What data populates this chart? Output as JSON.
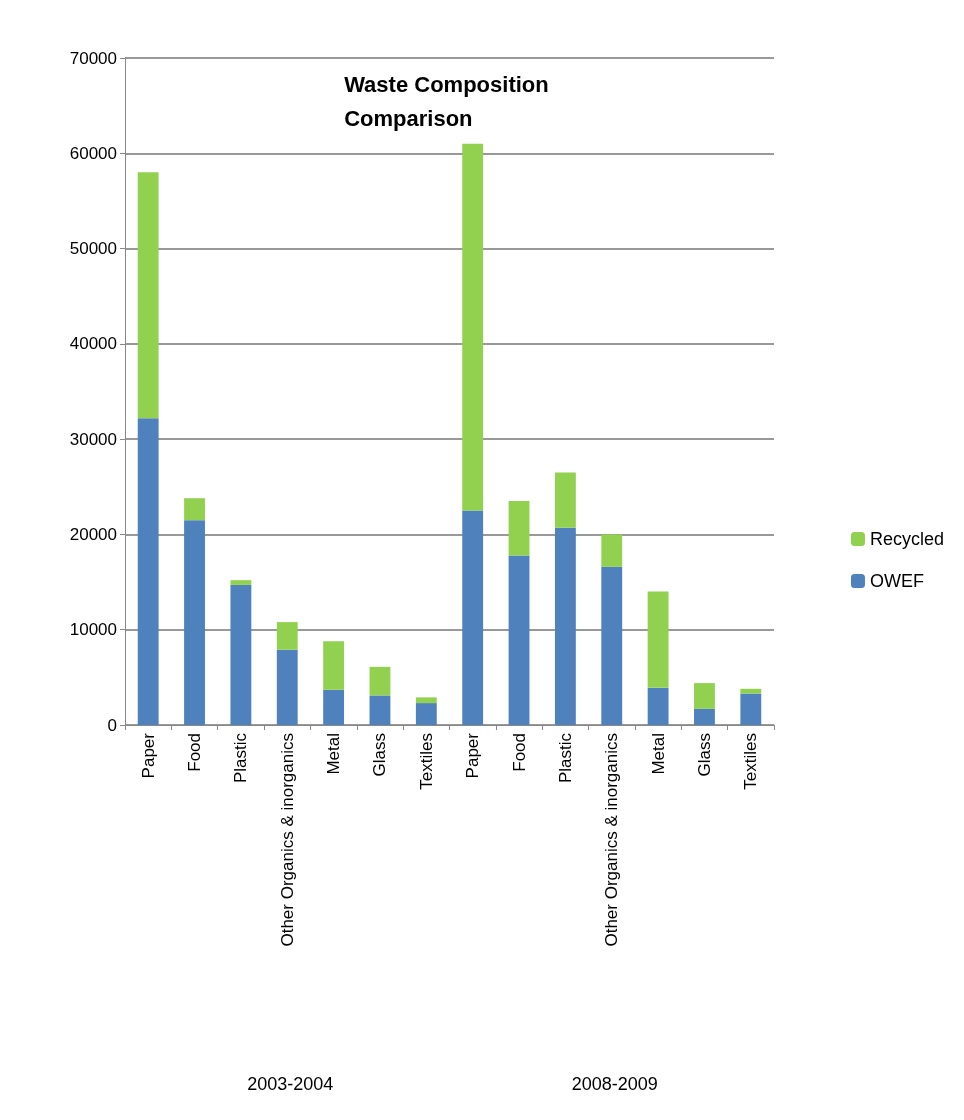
{
  "chart_data": {
    "type": "bar",
    "title": "Waste Composition\nComparison",
    "categories": [
      "Paper",
      "Food",
      "Plastic",
      "Other Organics & inorganics",
      "Metal",
      "Glass",
      "Textiles",
      "Paper",
      "Food",
      "Plastic",
      "Other Organics & inorganics",
      "Metal",
      "Glass",
      "Textiles"
    ],
    "series": [
      {
        "name": "OWEF",
        "color": "#4f81bd",
        "values": [
          32200,
          21500,
          14700,
          7900,
          3700,
          3100,
          2300,
          22500,
          17800,
          20700,
          16600,
          3900,
          1700,
          3300
        ]
      },
      {
        "name": "Recycled",
        "color": "#92d050",
        "values": [
          25800,
          2300,
          500,
          2900,
          5100,
          3000,
          600,
          38500,
          5700,
          5800,
          3400,
          10100,
          2700,
          500
        ]
      }
    ],
    "stacked": true,
    "ylim": [
      0,
      70000
    ],
    "yticks": [
      0,
      10000,
      20000,
      30000,
      40000,
      50000,
      60000,
      70000
    ],
    "grid": "y",
    "legend": "right",
    "annotations": [
      "2003-2004",
      "2008-2009"
    ]
  }
}
